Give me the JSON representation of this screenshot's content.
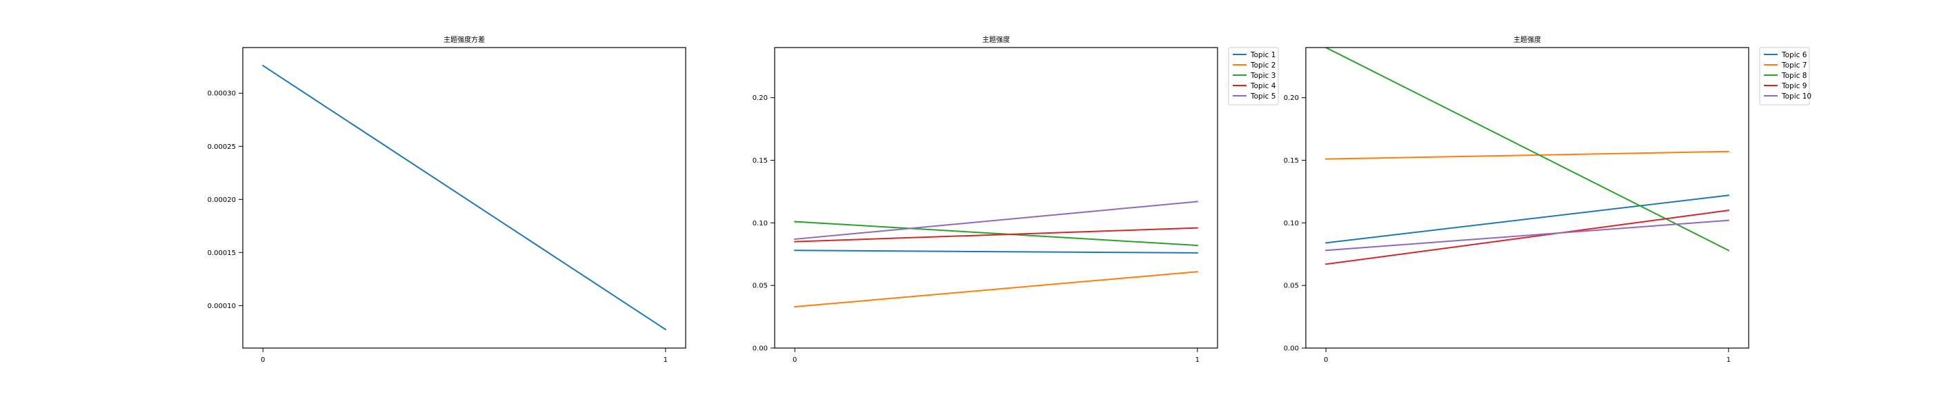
{
  "chart_data": [
    {
      "type": "line",
      "title": "主题强度方差",
      "xlabel": "",
      "ylabel": "",
      "x": [
        0,
        1
      ],
      "xticks": [
        "0",
        "1"
      ],
      "yticks": [
        "0.00010",
        "0.00015",
        "0.00020",
        "0.00025",
        "0.00030"
      ],
      "ylim": [
        6e-05,
        0.000343
      ],
      "grid": false,
      "legend": false,
      "series": [
        {
          "color": "#1f77b4",
          "values": [
            0.000326,
            7.75e-05
          ]
        }
      ]
    },
    {
      "type": "line",
      "title": "主题强度",
      "xlabel": "",
      "ylabel": "",
      "x": [
        0,
        1
      ],
      "xticks": [
        "0",
        "1"
      ],
      "yticks": [
        "0.00",
        "0.05",
        "0.10",
        "0.15",
        "0.20"
      ],
      "ylim": [
        0,
        0.24
      ],
      "grid": false,
      "legend": true,
      "legend_position": "outside-top-right",
      "series": [
        {
          "name": "Topic 1",
          "color": "#1f77b4",
          "values": [
            0.078,
            0.076
          ]
        },
        {
          "name": "Topic 2",
          "color": "#ff7f0e",
          "values": [
            0.033,
            0.061
          ]
        },
        {
          "name": "Topic 3",
          "color": "#2ca02c",
          "values": [
            0.101,
            0.082
          ]
        },
        {
          "name": "Topic 4",
          "color": "#d62728",
          "values": [
            0.085,
            0.096
          ]
        },
        {
          "name": "Topic 5",
          "color": "#9467bd",
          "values": [
            0.087,
            0.117
          ]
        }
      ]
    },
    {
      "type": "line",
      "title": "主题强度",
      "xlabel": "",
      "ylabel": "",
      "x": [
        0,
        1
      ],
      "xticks": [
        "0",
        "1"
      ],
      "yticks": [
        "0.00",
        "0.05",
        "0.10",
        "0.15",
        "0.20"
      ],
      "ylim": [
        0,
        0.24
      ],
      "grid": false,
      "legend": true,
      "legend_position": "outside-top-right",
      "series": [
        {
          "name": "Topic 6",
          "color": "#1f77b4",
          "values": [
            0.084,
            0.122
          ]
        },
        {
          "name": "Topic 7",
          "color": "#ff7f0e",
          "values": [
            0.151,
            0.157
          ]
        },
        {
          "name": "Topic 8",
          "color": "#2ca02c",
          "values": [
            0.24,
            0.078
          ]
        },
        {
          "name": "Topic 9",
          "color": "#d62728",
          "values": [
            0.067,
            0.11
          ]
        },
        {
          "name": "Topic 10",
          "color": "#9467bd",
          "values": [
            0.078,
            0.102
          ]
        }
      ]
    }
  ]
}
